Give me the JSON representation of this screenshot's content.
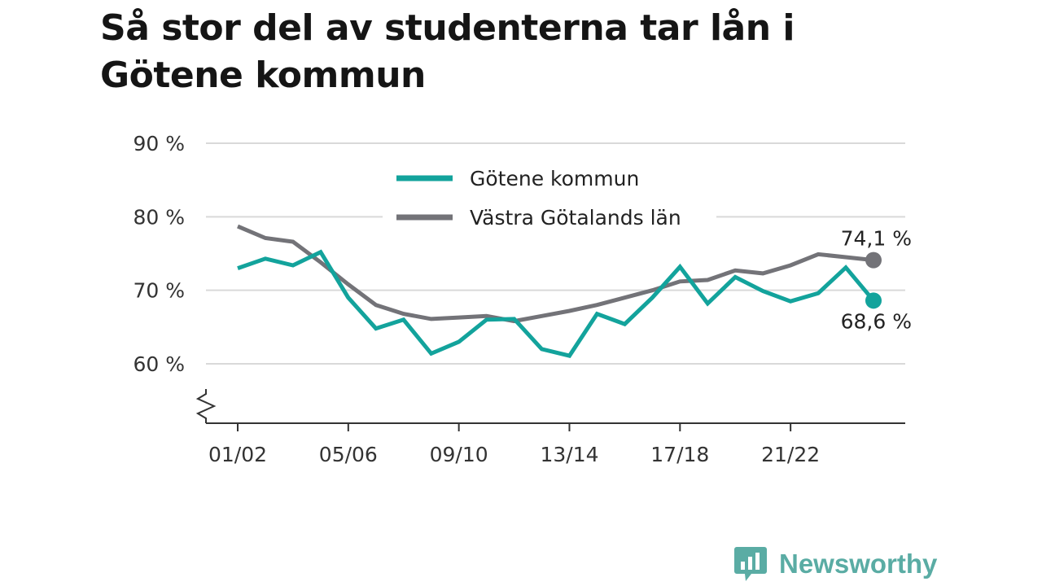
{
  "title": "Så stor del av studenterna tar lån i Götene kommun",
  "brand": {
    "name": "Newsworthy",
    "icon": "bar-chart-logo-icon",
    "color": "#5aaca4"
  },
  "chart_data": {
    "type": "line",
    "title": "Så stor del av studenterna tar lån i Götene kommun",
    "xlabel": "",
    "ylabel": "",
    "ylim": [
      52,
      90
    ],
    "y_axis_break": true,
    "grid": true,
    "legend": "top-center",
    "y_ticks": [
      {
        "value": 60,
        "label": "60 %"
      },
      {
        "value": 70,
        "label": "70 %"
      },
      {
        "value": 80,
        "label": "80 %"
      },
      {
        "value": 90,
        "label": "90 %"
      }
    ],
    "x_tick_labels": [
      "01/02",
      "05/06",
      "09/10",
      "13/14",
      "17/18",
      "21/22"
    ],
    "categories": [
      "01/02",
      "02/03",
      "03/04",
      "04/05",
      "05/06",
      "06/07",
      "07/08",
      "08/09",
      "09/10",
      "10/11",
      "11/12",
      "12/13",
      "13/14",
      "14/15",
      "15/16",
      "16/17",
      "17/18",
      "18/19",
      "19/20",
      "20/21",
      "21/22",
      "22/23",
      "23/24",
      "24/25"
    ],
    "series": [
      {
        "name": "Götene kommun",
        "color": "#13a39c",
        "values": [
          73.0,
          74.3,
          73.4,
          75.2,
          69.0,
          64.8,
          66.0,
          61.4,
          63.0,
          66.0,
          66.1,
          62.0,
          61.1,
          66.8,
          65.4,
          69.0,
          73.2,
          68.2,
          71.8,
          69.9,
          68.5,
          69.6,
          73.1,
          68.6
        ],
        "end_label": "68,6 %"
      },
      {
        "name": "Västra Götalands län",
        "color": "#737378",
        "values": [
          78.7,
          77.1,
          76.6,
          73.8,
          70.8,
          68.0,
          66.8,
          66.1,
          66.3,
          66.5,
          65.8,
          66.5,
          67.2,
          68.0,
          69.0,
          70.0,
          71.2,
          71.4,
          72.7,
          72.3,
          73.4,
          74.9,
          74.5,
          74.1
        ],
        "end_label": "74,1 %"
      }
    ]
  }
}
